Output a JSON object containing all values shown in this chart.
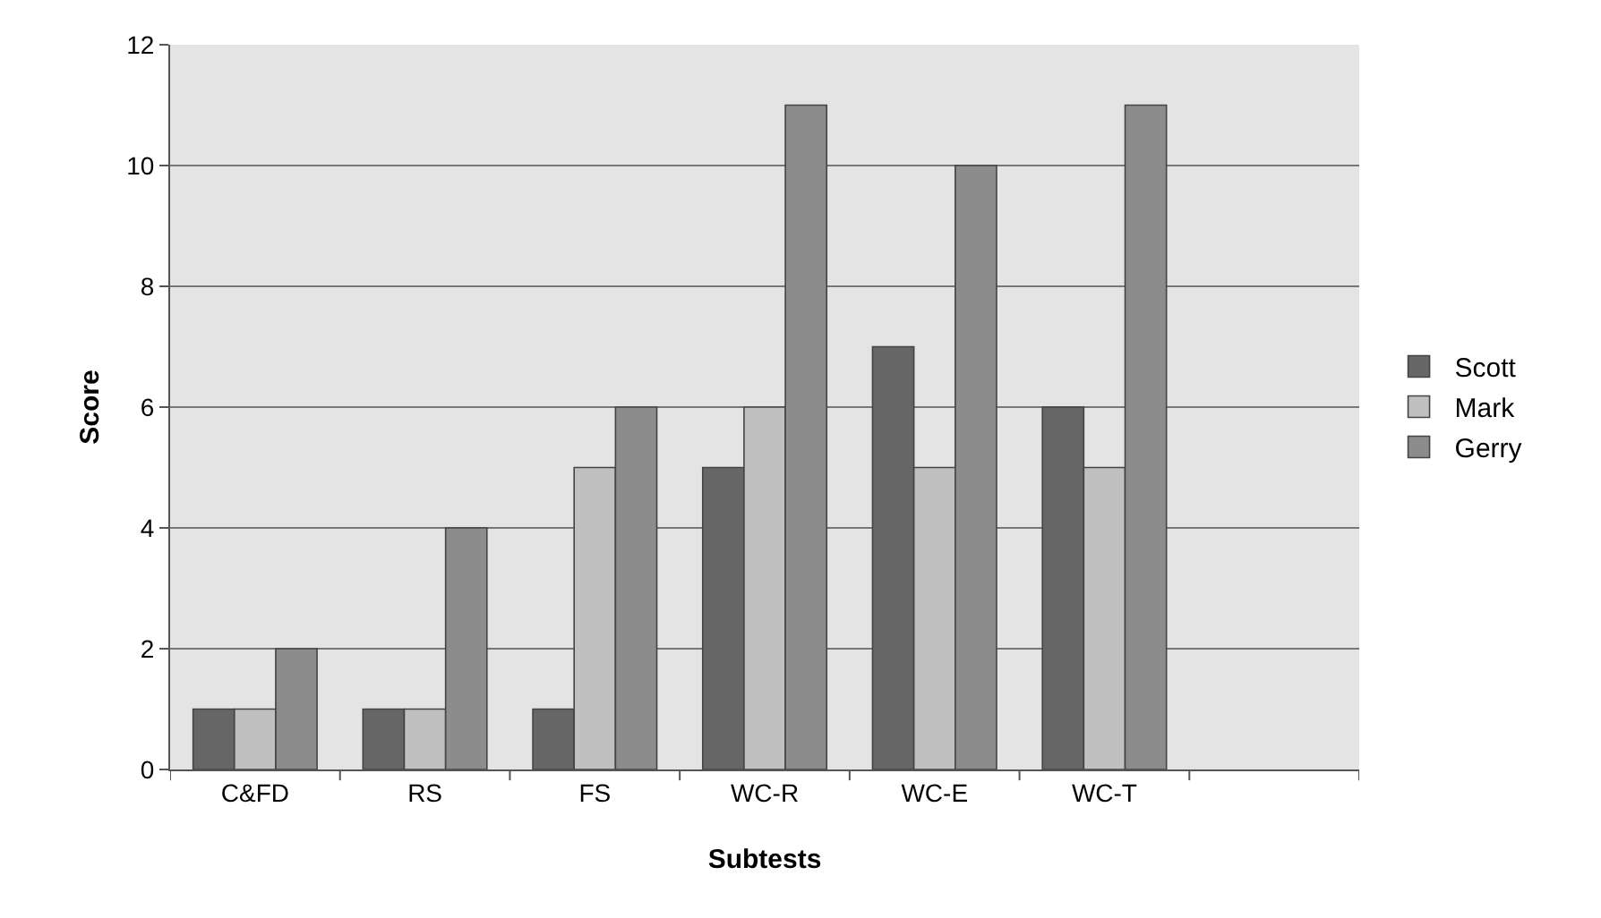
{
  "chart_data": {
    "type": "bar",
    "xlabel": "Subtests",
    "ylabel": "Score",
    "categories": [
      "C&FD",
      "RS",
      "FS",
      "WC-R",
      "WC-E",
      "WC-T",
      null
    ],
    "series": [
      {
        "name": "Scott",
        "color": "#666666",
        "values": [
          1,
          1,
          1,
          5,
          7,
          6,
          null
        ]
      },
      {
        "name": "Mark",
        "color": "#c0c0c0",
        "values": [
          1,
          1,
          5,
          6,
          5,
          5,
          null
        ]
      },
      {
        "name": "Gerry",
        "color": "#8c8c8c",
        "values": [
          2,
          4,
          6,
          11,
          10,
          11,
          null
        ]
      }
    ],
    "ylim": [
      0,
      12
    ],
    "yticks": [
      0,
      2,
      4,
      6,
      8,
      10,
      12
    ],
    "grid": "y",
    "legend": "right"
  }
}
